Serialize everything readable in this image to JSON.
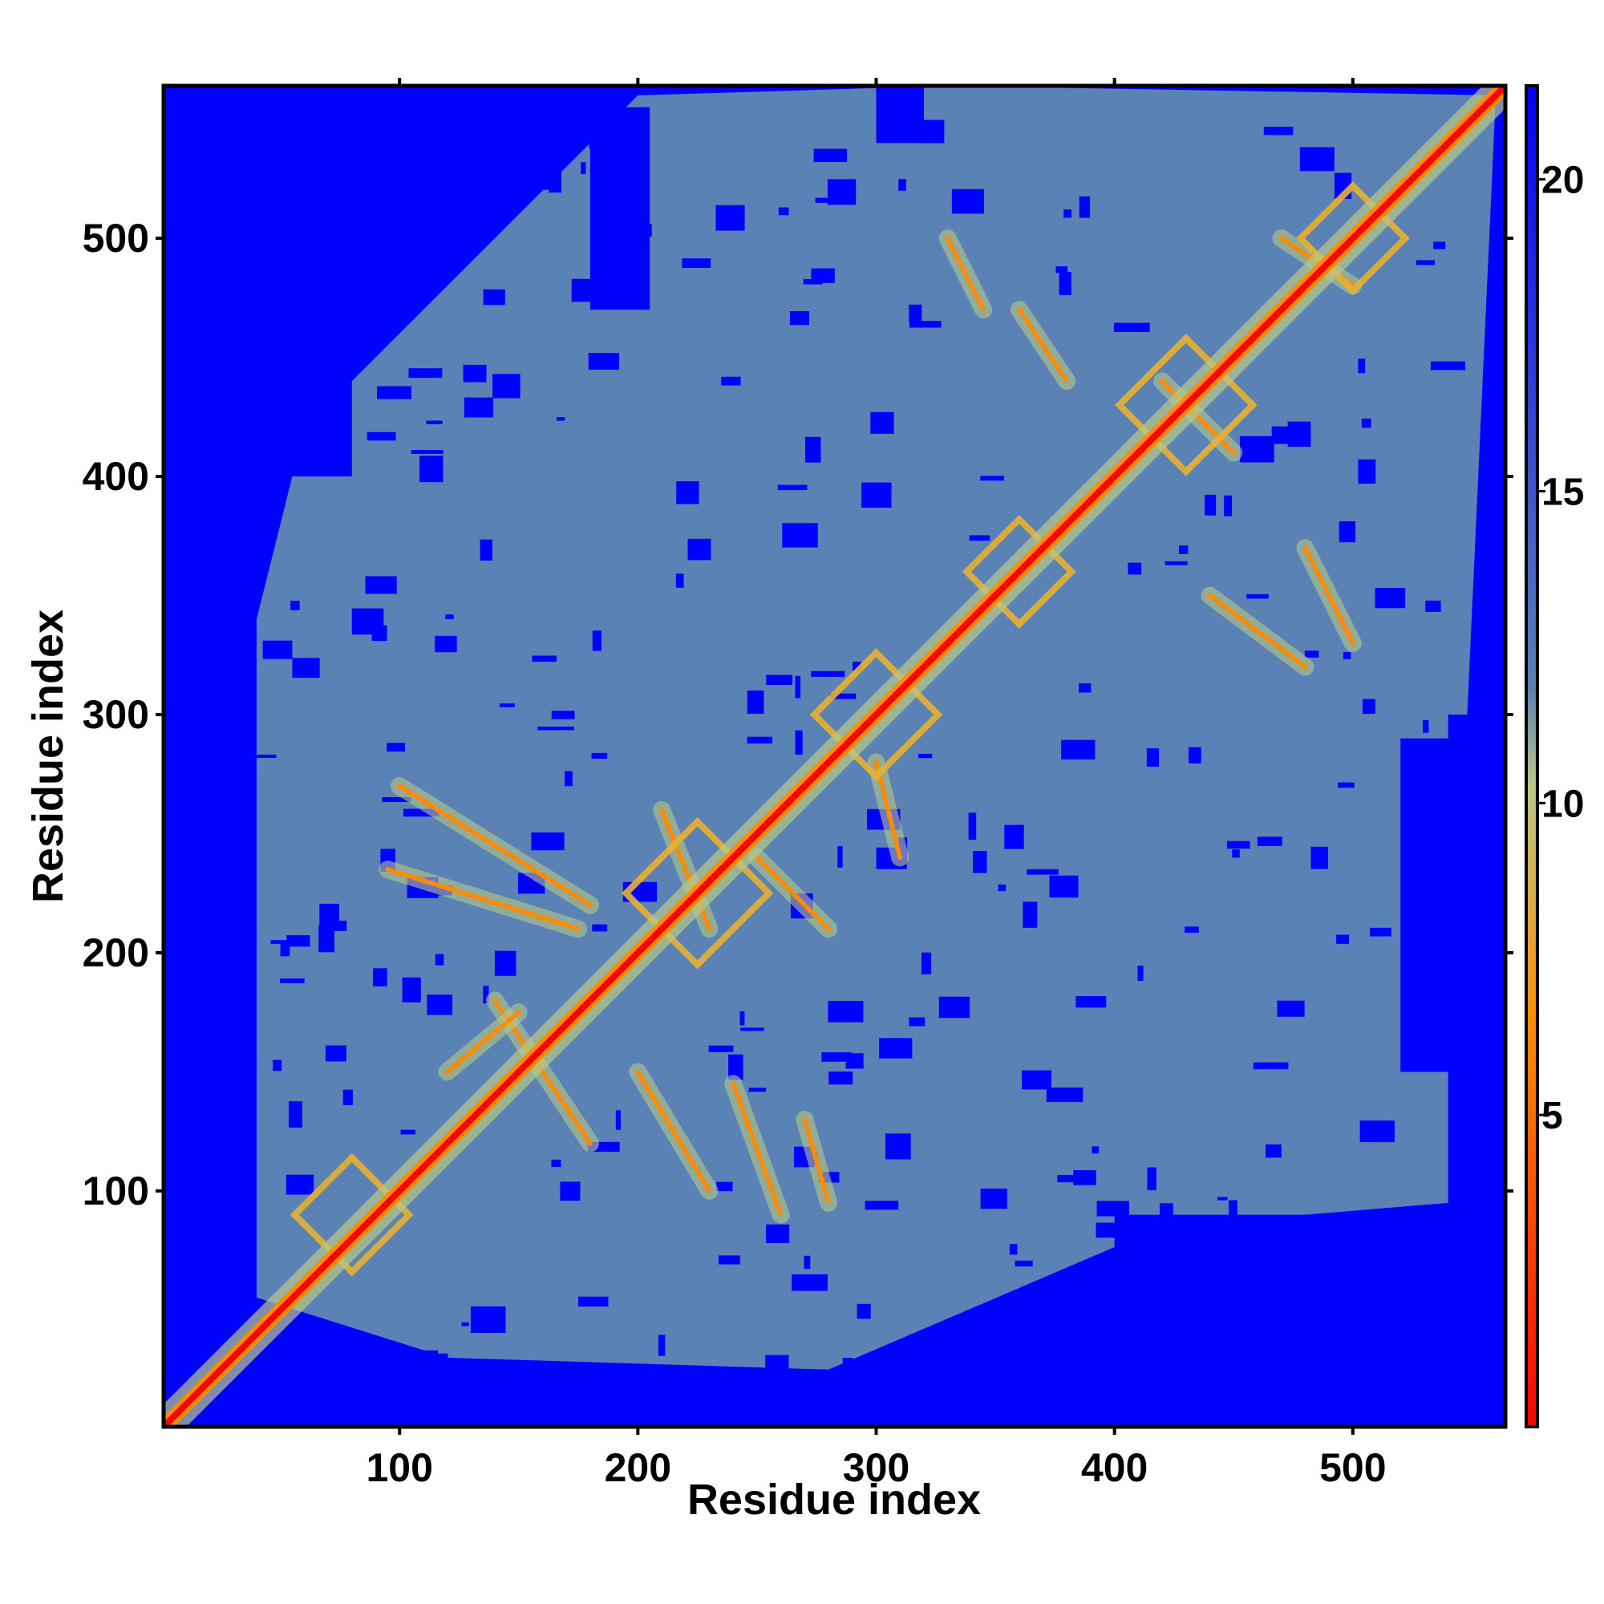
{
  "chart_data": {
    "type": "heatmap",
    "title": "",
    "xlabel": "Residue index",
    "ylabel": "Residue index",
    "xlim": [
      1,
      564
    ],
    "ylim": [
      1,
      564
    ],
    "x_ticks": [
      100,
      200,
      300,
      400,
      500
    ],
    "y_ticks": [
      100,
      200,
      300,
      400,
      500
    ],
    "colorbar": {
      "ticks": [
        5,
        10,
        15,
        20
      ],
      "range": [
        0,
        21.5
      ],
      "colors": [
        "#ff0000",
        "#ff8c00",
        "#b8c88a",
        "#5a82b4",
        "#0000ff"
      ],
      "stops": [
        0,
        0.3,
        0.48,
        0.55,
        1
      ]
    },
    "background_color": "#0000ff",
    "contact_color": "#5a82b4",
    "diagonal_color": "#ff0000",
    "description_values": {
      "diagonal_distance": 2,
      "near_diagonal_distance": 6,
      "interior_typical_distance": 14
    },
    "contact_lines": [
      {
        "x1": 100,
        "y1": 270,
        "x2": 180,
        "y2": 220
      },
      {
        "x1": 95,
        "y1": 235,
        "x2": 175,
        "y2": 210
      },
      {
        "x1": 140,
        "y1": 180,
        "x2": 180,
        "y2": 120
      },
      {
        "x1": 150,
        "y1": 175,
        "x2": 120,
        "y2": 150
      },
      {
        "x1": 200,
        "y1": 150,
        "x2": 230,
        "y2": 100
      },
      {
        "x1": 240,
        "y1": 145,
        "x2": 260,
        "y2": 90
      },
      {
        "x1": 270,
        "y1": 130,
        "x2": 280,
        "y2": 95
      },
      {
        "x1": 210,
        "y1": 260,
        "x2": 230,
        "y2": 210
      },
      {
        "x1": 250,
        "y1": 240,
        "x2": 280,
        "y2": 210
      },
      {
        "x1": 300,
        "y1": 280,
        "x2": 310,
        "y2": 240
      },
      {
        "x1": 330,
        "y1": 500,
        "x2": 345,
        "y2": 470
      },
      {
        "x1": 360,
        "y1": 470,
        "x2": 380,
        "y2": 440
      },
      {
        "x1": 440,
        "y1": 350,
        "x2": 480,
        "y2": 320
      },
      {
        "x1": 480,
        "y1": 370,
        "x2": 500,
        "y2": 330
      },
      {
        "x1": 420,
        "y1": 440,
        "x2": 450,
        "y2": 410
      },
      {
        "x1": 470,
        "y1": 500,
        "x2": 500,
        "y2": 480
      }
    ],
    "diamond_motifs": [
      {
        "cx": 80,
        "cy": 90,
        "size": 24
      },
      {
        "cx": 225,
        "cy": 225,
        "size": 30
      },
      {
        "cx": 300,
        "cy": 300,
        "size": 26
      },
      {
        "cx": 360,
        "cy": 360,
        "size": 22
      },
      {
        "cx": 430,
        "cy": 430,
        "size": 28
      },
      {
        "cx": 500,
        "cy": 500,
        "size": 22
      }
    ],
    "blue_regions": [
      {
        "x1": 1,
        "x2": 40,
        "y1": 1,
        "y2": 564
      },
      {
        "x1": 1,
        "x2": 564,
        "y1": 1,
        "y2": 25
      },
      {
        "x1": 400,
        "x2": 564,
        "y1": 1,
        "y2": 90
      },
      {
        "x1": 1,
        "x2": 80,
        "y1": 400,
        "y2": 564
      },
      {
        "x1": 540,
        "x2": 564,
        "y1": 1,
        "y2": 300
      },
      {
        "x1": 180,
        "x2": 205,
        "y1": 470,
        "y2": 555
      },
      {
        "x1": 80,
        "x2": 140,
        "y1": 540,
        "y2": 564
      },
      {
        "x1": 300,
        "x2": 320,
        "y1": 540,
        "y2": 564
      },
      {
        "x1": 520,
        "x2": 564,
        "y1": 150,
        "y2": 290
      }
    ]
  }
}
